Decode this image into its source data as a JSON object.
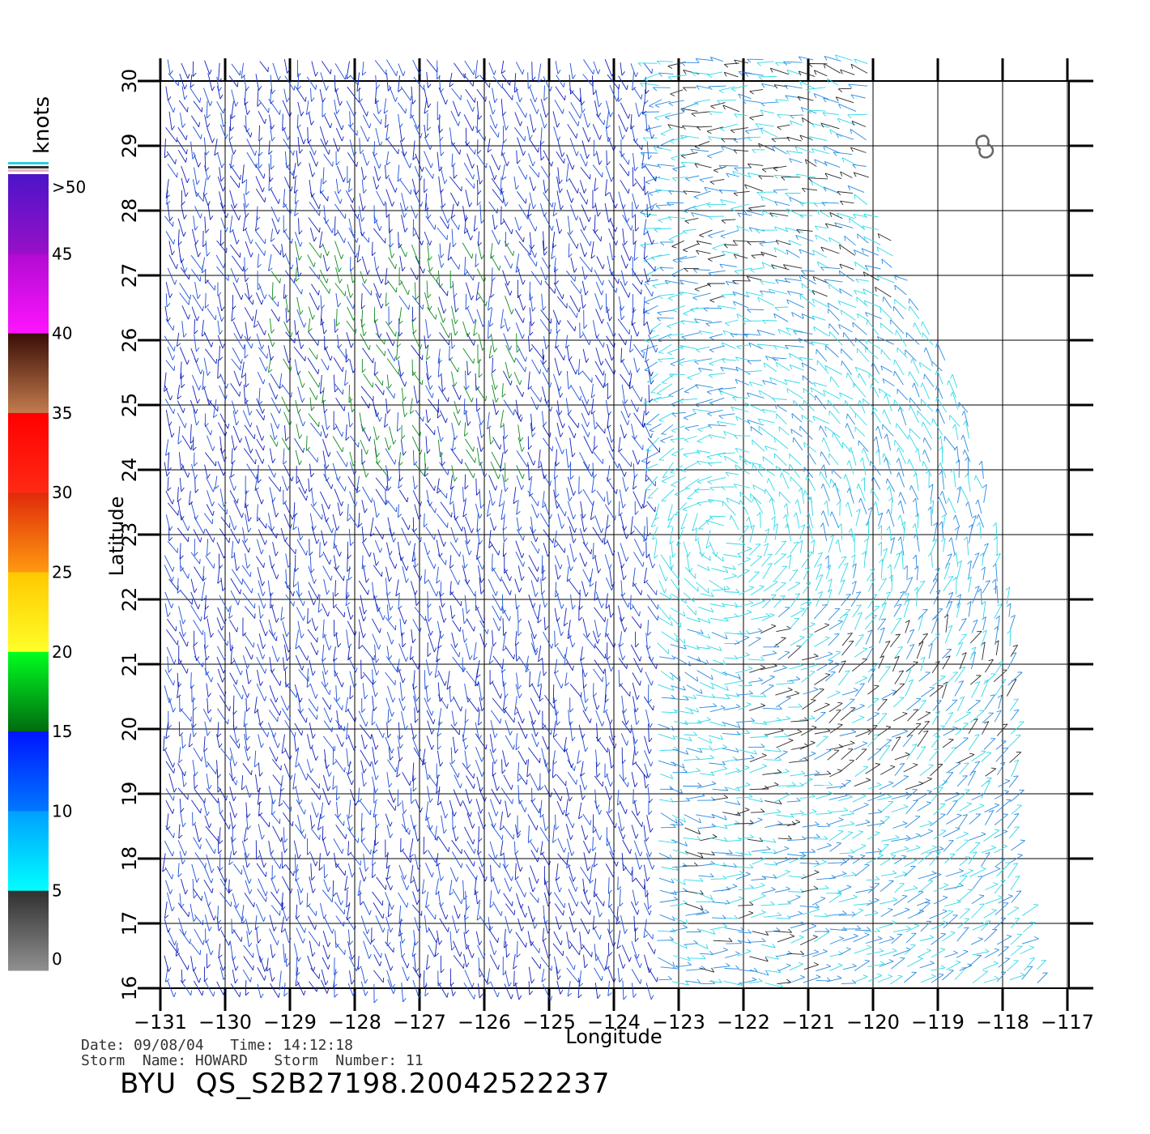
{
  "colorbar": {
    "unit": "knots",
    "tick_labels": [
      ">50",
      "45",
      "40",
      "35",
      "30",
      "25",
      "20",
      "15",
      "10",
      "5",
      "0"
    ],
    "segments": [
      {
        "range": "45-50",
        "colors": [
          "#4b14c8",
          "#9910c8"
        ]
      },
      {
        "range": "40-45",
        "colors": [
          "#b10ad2",
          "#ff14ff"
        ]
      },
      {
        "range": "35-40",
        "colors": [
          "#3a0e06",
          "#c47c4e"
        ]
      },
      {
        "range": "30-35",
        "colors": [
          "#ff0000",
          "#ff2a14"
        ]
      },
      {
        "range": "25-30",
        "colors": [
          "#e02a0a",
          "#ff9a10"
        ]
      },
      {
        "range": "20-25",
        "colors": [
          "#ffc800",
          "#ffff28"
        ]
      },
      {
        "range": "15-20",
        "colors": [
          "#00ff20",
          "#006a10"
        ]
      },
      {
        "range": "10-15",
        "colors": [
          "#0014ff",
          "#0078ff"
        ]
      },
      {
        "range": "5-10",
        "colors": [
          "#00a0ff",
          "#00ffff"
        ]
      },
      {
        "range": "0-5",
        "colors": [
          "#303030",
          "#909090"
        ]
      }
    ]
  },
  "map": {
    "x_axis_label": "Longitude",
    "y_axis_label": "Latitude",
    "lon_ticks": [
      "−131",
      "−130",
      "−129",
      "−128",
      "−127",
      "−126",
      "−125",
      "−124",
      "−123",
      "−122",
      "−121",
      "−120",
      "−119",
      "−118",
      "−117"
    ],
    "lat_ticks": [
      "16",
      "17",
      "18",
      "19",
      "20",
      "21",
      "22",
      "23",
      "24",
      "25",
      "26",
      "27",
      "28",
      "29",
      "30"
    ],
    "lon_range": [
      -131,
      -117
    ],
    "lat_range": [
      16,
      30
    ],
    "wind_colors": {
      "calm": "#2a2a2a",
      "light": "#30d8e8",
      "moderate_light": "#2a8ae0",
      "moderate": "#1f50d8",
      "fresh": "#1020b8",
      "strong": "#108a20"
    }
  },
  "info": {
    "date_line": "Date: 09/08/04   Time: 14:12:18",
    "storm_line": "Storm  Name: HOWARD   Storm  Number: 11",
    "product_id": "BYU  QS_S2B27198.20042522237"
  }
}
